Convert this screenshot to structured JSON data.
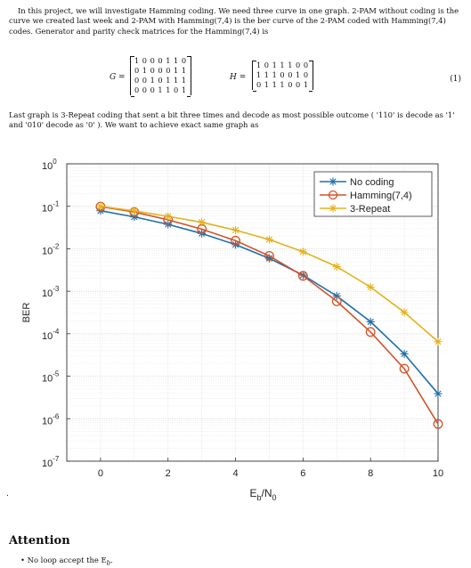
{
  "intro_text": "In this project, we will investigate Hamming coding. We need three curve in one graph. 2-PAM without coding is the curve we created last week and 2-PAM with Hamming(7,4) is the ber curve of the 2-PAM coded with Hamming(7,4) codes. Generator and parity check matrices for the Hamming(7,4) is",
  "g_label": "G =",
  "h_label": "H =",
  "g_rows": [
    "1 0 0 0 1 1 0",
    "0 1 0 0 0 1 1",
    "0 0 1 0 1 1 1",
    "0 0 0 1 1 0 1"
  ],
  "h_rows": [
    "1 0 1 1 1 0 0",
    "1 1 1 0 0 1 0",
    "0 1 1 1 0 0 1"
  ],
  "equation_number": "(1)",
  "after_text": "Last graph is 3-Repeat coding that sent a bit three times and decode as most possible outcome ( '110' is decode as '1' and '010' decode as '0' ). We want to achieve exact same graph as",
  "bullet_dot": ".",
  "attention_heading": "Attention",
  "bullet_text": "No loop accept the E",
  "bullet_sub": "b",
  "bullet_end": ".",
  "chart_data": {
    "type": "line",
    "x": [
      0,
      1,
      2,
      3,
      4,
      5,
      6,
      7,
      8,
      9,
      10
    ],
    "xlabel": "E",
    "xlabel_sub": "b",
    "xlabel_mid": "/N",
    "xlabel_sub2": "0",
    "ylabel": "BER",
    "yscale": "log",
    "xlim": [
      -1,
      10
    ],
    "ylim": [
      1e-07,
      1
    ],
    "xticks": [
      "0",
      "2",
      "4",
      "6",
      "8",
      "10"
    ],
    "xtick_values": [
      0,
      2,
      4,
      6,
      8,
      10
    ],
    "yticks": [
      {
        "base": "10",
        "exp": "0",
        "value": 1
      },
      {
        "base": "10",
        "exp": "-1",
        "value": 0.1
      },
      {
        "base": "10",
        "exp": "-2",
        "value": 0.01
      },
      {
        "base": "10",
        "exp": "-3",
        "value": 0.001
      },
      {
        "base": "10",
        "exp": "-4",
        "value": 0.0001
      },
      {
        "base": "10",
        "exp": "-5",
        "value": 1e-05
      },
      {
        "base": "10",
        "exp": "-6",
        "value": 1e-06
      },
      {
        "base": "10",
        "exp": "-7",
        "value": 1e-07
      }
    ],
    "grid": true,
    "legend_position": "top-right",
    "series": [
      {
        "name": "No coding",
        "color": "#1f6fa8",
        "marker": "star",
        "values": [
          0.0786,
          0.0563,
          0.0375,
          0.0229,
          0.0125,
          0.00595,
          0.00239,
          0.000773,
          0.000191,
          3.36e-05,
          3.87e-06
        ]
      },
      {
        "name": "Hamming(7,4)",
        "color": "#d2532a",
        "marker": "circle",
        "values": [
          0.098,
          0.073,
          0.048,
          0.029,
          0.0155,
          0.0068,
          0.0023,
          0.00058,
          0.00011,
          1.5e-05,
          7.5e-07
        ]
      },
      {
        "name": "3-Repeat",
        "color": "#e3b21a",
        "marker": "star",
        "values": [
          0.1,
          0.078,
          0.058,
          0.042,
          0.0275,
          0.0165,
          0.0085,
          0.0038,
          0.00125,
          0.00032,
          6.5e-05
        ]
      }
    ]
  }
}
